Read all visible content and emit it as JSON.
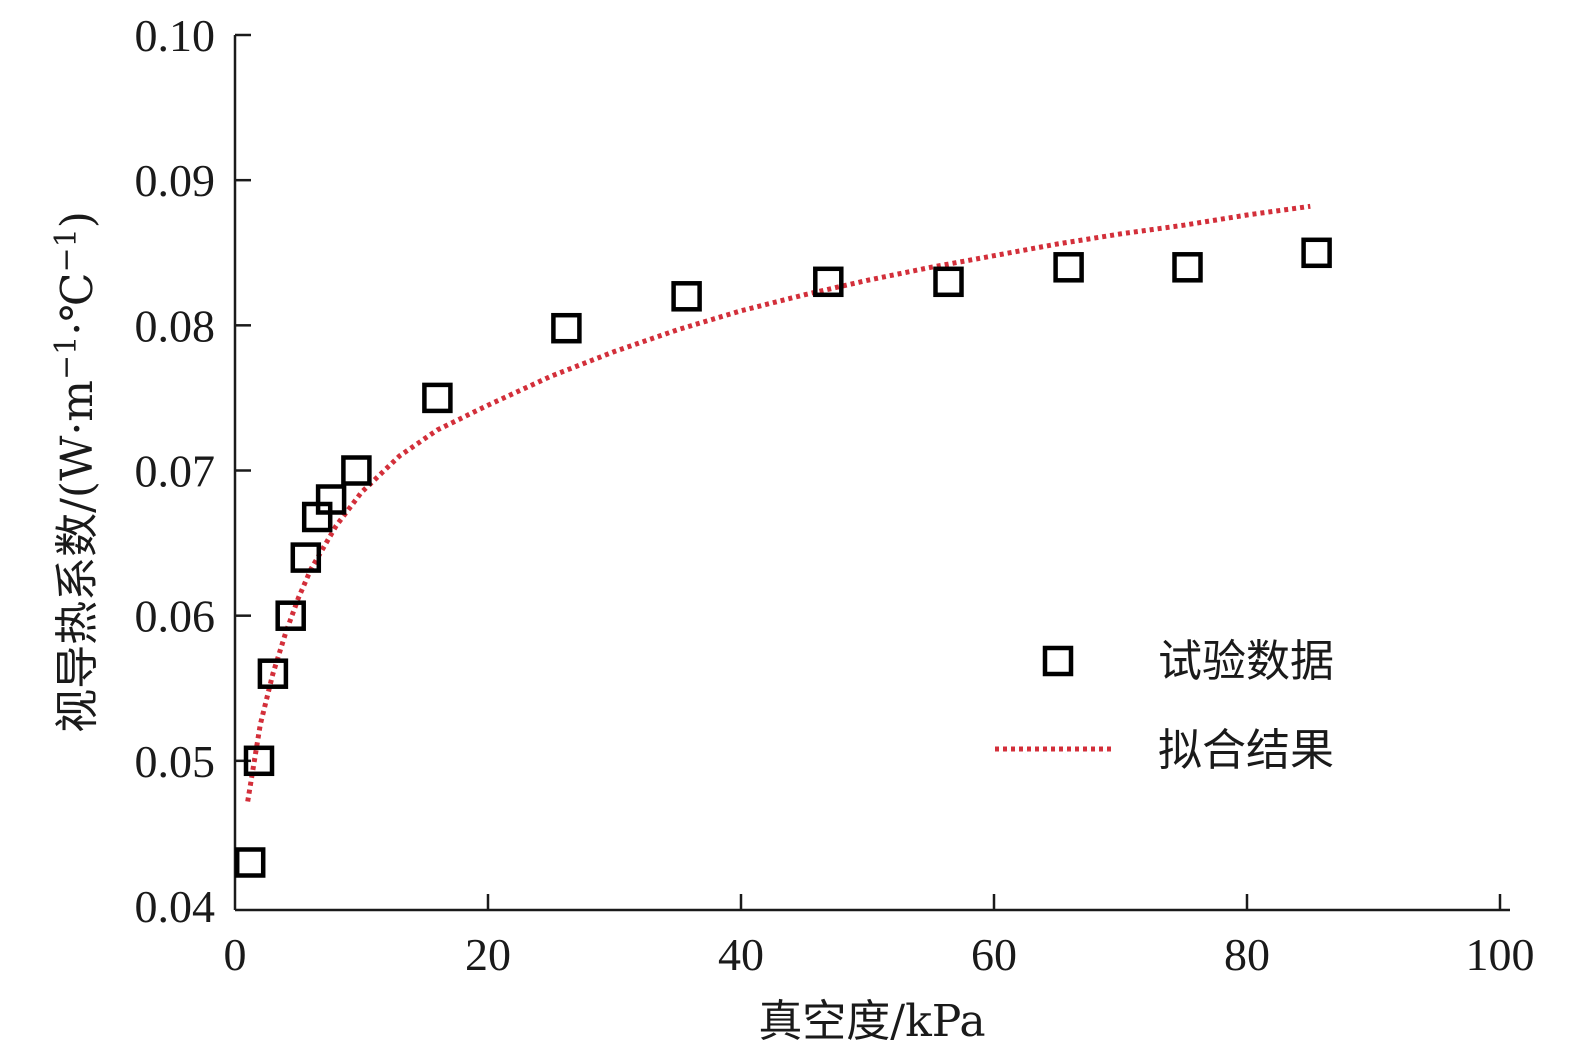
{
  "chart_data": {
    "type": "scatter",
    "xlabel": "真空度/kPa",
    "ylabel_main": "视导热系数/(W·m",
    "ylabel_sup1": "−1",
    "ylabel_mid": "·℃",
    "ylabel_sup2": "−1",
    "ylabel_end": ")",
    "xlim": [
      0,
      100
    ],
    "ylim": [
      0.04,
      0.1
    ],
    "x_ticks": [
      0,
      20,
      40,
      60,
      80,
      100
    ],
    "x_tick_labels": [
      "0",
      "20",
      "40",
      "60",
      "80",
      "100"
    ],
    "y_ticks": [
      0.04,
      0.05,
      0.06,
      0.07,
      0.08,
      0.09,
      0.1
    ],
    "y_tick_labels": [
      "0.04",
      "0.05",
      "0.06",
      "0.07",
      "0.08",
      "0.09",
      "0.10"
    ],
    "grid": false,
    "legend_position": "right-middle",
    "series": [
      {
        "name": "试验数据",
        "kind": "scatter",
        "marker": "open-square",
        "color": "#000000",
        "points": [
          [
            1.2,
            0.043
          ],
          [
            1.9,
            0.05
          ],
          [
            3.0,
            0.056
          ],
          [
            4.4,
            0.06
          ],
          [
            5.6,
            0.064
          ],
          [
            6.5,
            0.0668
          ],
          [
            7.6,
            0.068
          ],
          [
            9.6,
            0.07
          ],
          [
            16.0,
            0.075
          ],
          [
            26.2,
            0.0798
          ],
          [
            35.7,
            0.082
          ],
          [
            46.9,
            0.083
          ],
          [
            56.4,
            0.083
          ],
          [
            65.9,
            0.084
          ],
          [
            75.3,
            0.084
          ],
          [
            85.5,
            0.085
          ]
        ]
      },
      {
        "name": "拟合结果",
        "kind": "line",
        "style": "dotted",
        "color": "#d32f3a",
        "points": [
          [
            1.0,
            0.0472
          ],
          [
            2.0,
            0.0525
          ],
          [
            3.0,
            0.056
          ],
          [
            4.0,
            0.0588
          ],
          [
            5.0,
            0.0612
          ],
          [
            6.0,
            0.0632
          ],
          [
            8.0,
            0.0662
          ],
          [
            10.0,
            0.0685
          ],
          [
            13.0,
            0.071
          ],
          [
            16.0,
            0.0728
          ],
          [
            20.0,
            0.0745
          ],
          [
            25.0,
            0.0765
          ],
          [
            30.0,
            0.0782
          ],
          [
            35.0,
            0.0797
          ],
          [
            40.0,
            0.081
          ],
          [
            45.0,
            0.0821
          ],
          [
            50.0,
            0.0831
          ],
          [
            55.0,
            0.084
          ],
          [
            60.0,
            0.0848
          ],
          [
            65.0,
            0.0856
          ],
          [
            70.0,
            0.0863
          ],
          [
            75.0,
            0.0869
          ],
          [
            80.0,
            0.0876
          ],
          [
            85.0,
            0.0882
          ]
        ]
      }
    ]
  }
}
